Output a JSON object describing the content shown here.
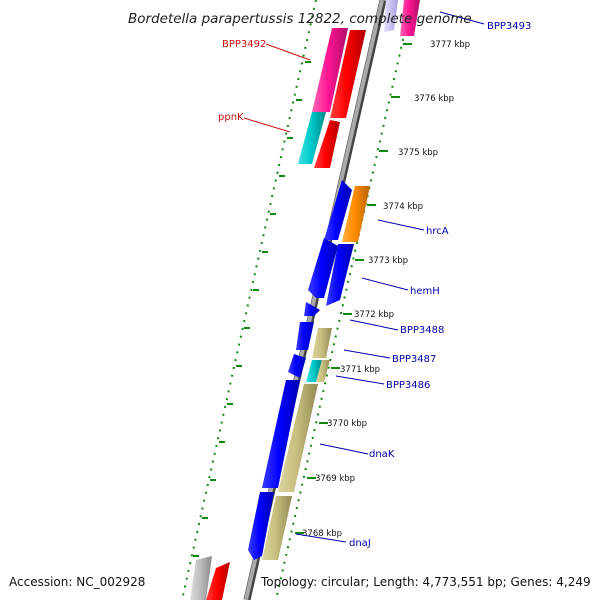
{
  "title": "Bordetella parapertussis 12822, complete genome",
  "footer": {
    "accession": "Accession: NC_002928",
    "topology": "Topology: circular; Length: 4,773,551 bp; Genes: 4,249"
  },
  "ticks": [
    "3777 kbp",
    "3776 kbp",
    "3775 kbp",
    "3774 kbp",
    "3773 kbp",
    "3772 kbp",
    "3771 kbp",
    "3770 kbp",
    "3769 kbp",
    "3768 kbp"
  ],
  "genes": {
    "bpp3493": "BPP3493",
    "bpp3492": "BPP3492",
    "ppnk": "ppnK",
    "hrca": "hrcA",
    "hemh": "hemH",
    "bpp3488": "BPP3488",
    "bpp3487": "BPP3487",
    "bpp3486": "BPP3486",
    "dnak": "dnaK",
    "dnaj": "dnaJ"
  },
  "colors": {
    "blue": "#0000ff",
    "red": "#ff0000",
    "magenta": "#ff1493",
    "cyan": "#00cccc",
    "orange": "#ff8c00",
    "khaki": "#c8bf7f",
    "backbone": "#999999",
    "ticks": "#118811"
  }
}
